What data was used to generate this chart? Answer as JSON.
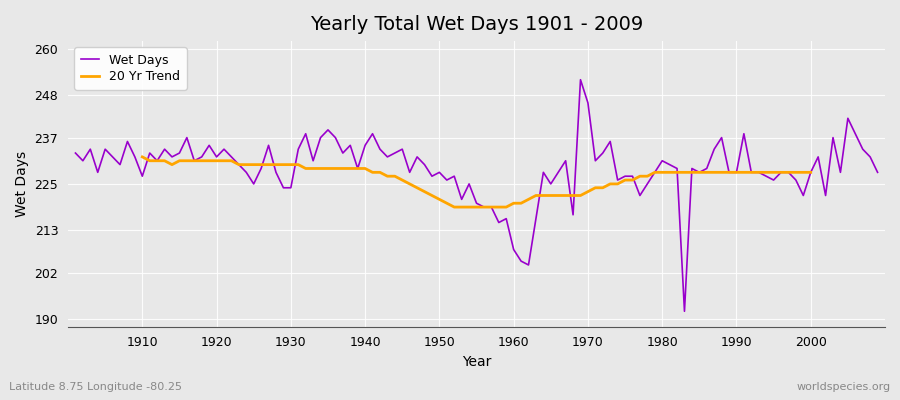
{
  "title": "Yearly Total Wet Days 1901 - 2009",
  "xlabel": "Year",
  "ylabel": "Wet Days",
  "subtitle": "Latitude 8.75 Longitude -80.25",
  "watermark": "worldspecies.org",
  "legend_labels": [
    "Wet Days",
    "20 Yr Trend"
  ],
  "line_color": "#9900cc",
  "trend_color": "#ffa500",
  "bg_color": "#e8e8e8",
  "plot_bg_color": "#e8e8e8",
  "yticks": [
    190,
    202,
    213,
    225,
    237,
    248,
    260
  ],
  "ylim": [
    188,
    262
  ],
  "xlim": [
    1900,
    2010
  ],
  "years": [
    1901,
    1902,
    1903,
    1904,
    1905,
    1906,
    1907,
    1908,
    1909,
    1910,
    1911,
    1912,
    1913,
    1914,
    1915,
    1916,
    1917,
    1918,
    1919,
    1920,
    1921,
    1922,
    1923,
    1924,
    1925,
    1926,
    1927,
    1928,
    1929,
    1930,
    1931,
    1932,
    1933,
    1934,
    1935,
    1936,
    1937,
    1938,
    1939,
    1940,
    1941,
    1942,
    1943,
    1944,
    1945,
    1946,
    1947,
    1948,
    1949,
    1950,
    1951,
    1952,
    1953,
    1954,
    1955,
    1956,
    1957,
    1958,
    1959,
    1960,
    1961,
    1962,
    1963,
    1964,
    1965,
    1966,
    1967,
    1968,
    1969,
    1970,
    1971,
    1972,
    1973,
    1974,
    1975,
    1976,
    1977,
    1978,
    1979,
    1980,
    1981,
    1982,
    1983,
    1984,
    1985,
    1986,
    1987,
    1988,
    1989,
    1990,
    1991,
    1992,
    1993,
    1994,
    1995,
    1996,
    1997,
    1998,
    1999,
    2000,
    2001,
    2002,
    2003,
    2004,
    2005,
    2006,
    2007,
    2008,
    2009
  ],
  "wet_days": [
    233,
    231,
    234,
    228,
    234,
    232,
    230,
    236,
    232,
    227,
    233,
    231,
    234,
    232,
    233,
    237,
    231,
    232,
    235,
    232,
    234,
    232,
    230,
    228,
    225,
    229,
    235,
    228,
    224,
    224,
    234,
    238,
    231,
    237,
    239,
    237,
    233,
    235,
    229,
    235,
    238,
    234,
    232,
    233,
    234,
    228,
    232,
    230,
    227,
    228,
    226,
    227,
    221,
    225,
    220,
    219,
    219,
    215,
    216,
    208,
    205,
    204,
    216,
    228,
    225,
    228,
    231,
    217,
    252,
    246,
    231,
    233,
    236,
    226,
    227,
    227,
    222,
    225,
    228,
    231,
    230,
    229,
    192,
    229,
    228,
    229,
    234,
    237,
    228,
    228,
    238,
    228,
    228,
    227,
    226,
    228,
    228,
    226,
    222,
    228,
    232,
    222,
    237,
    228,
    242,
    238,
    234,
    232,
    228
  ],
  "trend_years": [
    1910,
    1911,
    1912,
    1913,
    1914,
    1915,
    1916,
    1917,
    1918,
    1919,
    1920,
    1921,
    1922,
    1923,
    1924,
    1925,
    1926,
    1927,
    1928,
    1929,
    1930,
    1931,
    1932,
    1933,
    1934,
    1935,
    1936,
    1937,
    1938,
    1939,
    1940,
    1941,
    1942,
    1943,
    1944,
    1945,
    1946,
    1947,
    1948,
    1949,
    1950,
    1951,
    1952,
    1953,
    1954,
    1955,
    1956,
    1957,
    1958,
    1959,
    1960,
    1961,
    1962,
    1963,
    1964,
    1965,
    1966,
    1967,
    1968,
    1969,
    1970,
    1971,
    1972,
    1973,
    1974,
    1975,
    1976,
    1977,
    1978,
    1979,
    1980,
    1981,
    1982,
    1983,
    1984,
    1985,
    1986,
    1987,
    1988,
    1989,
    1990,
    1991,
    1992,
    1993,
    1994,
    1995,
    1996,
    1997,
    1998,
    1999,
    2000
  ],
  "trend_values": [
    232,
    231,
    231,
    231,
    230,
    231,
    231,
    231,
    231,
    231,
    231,
    231,
    231,
    230,
    230,
    230,
    230,
    230,
    230,
    230,
    230,
    230,
    229,
    229,
    229,
    229,
    229,
    229,
    229,
    229,
    229,
    228,
    228,
    227,
    227,
    226,
    225,
    224,
    223,
    222,
    221,
    220,
    219,
    219,
    219,
    219,
    219,
    219,
    219,
    219,
    220,
    220,
    221,
    222,
    222,
    222,
    222,
    222,
    222,
    222,
    223,
    224,
    224,
    225,
    225,
    226,
    226,
    227,
    227,
    228,
    228,
    228,
    228,
    228,
    228,
    228,
    228,
    228,
    228,
    228,
    228,
    228,
    228,
    228,
    228,
    228,
    228,
    228,
    228,
    228,
    228
  ]
}
